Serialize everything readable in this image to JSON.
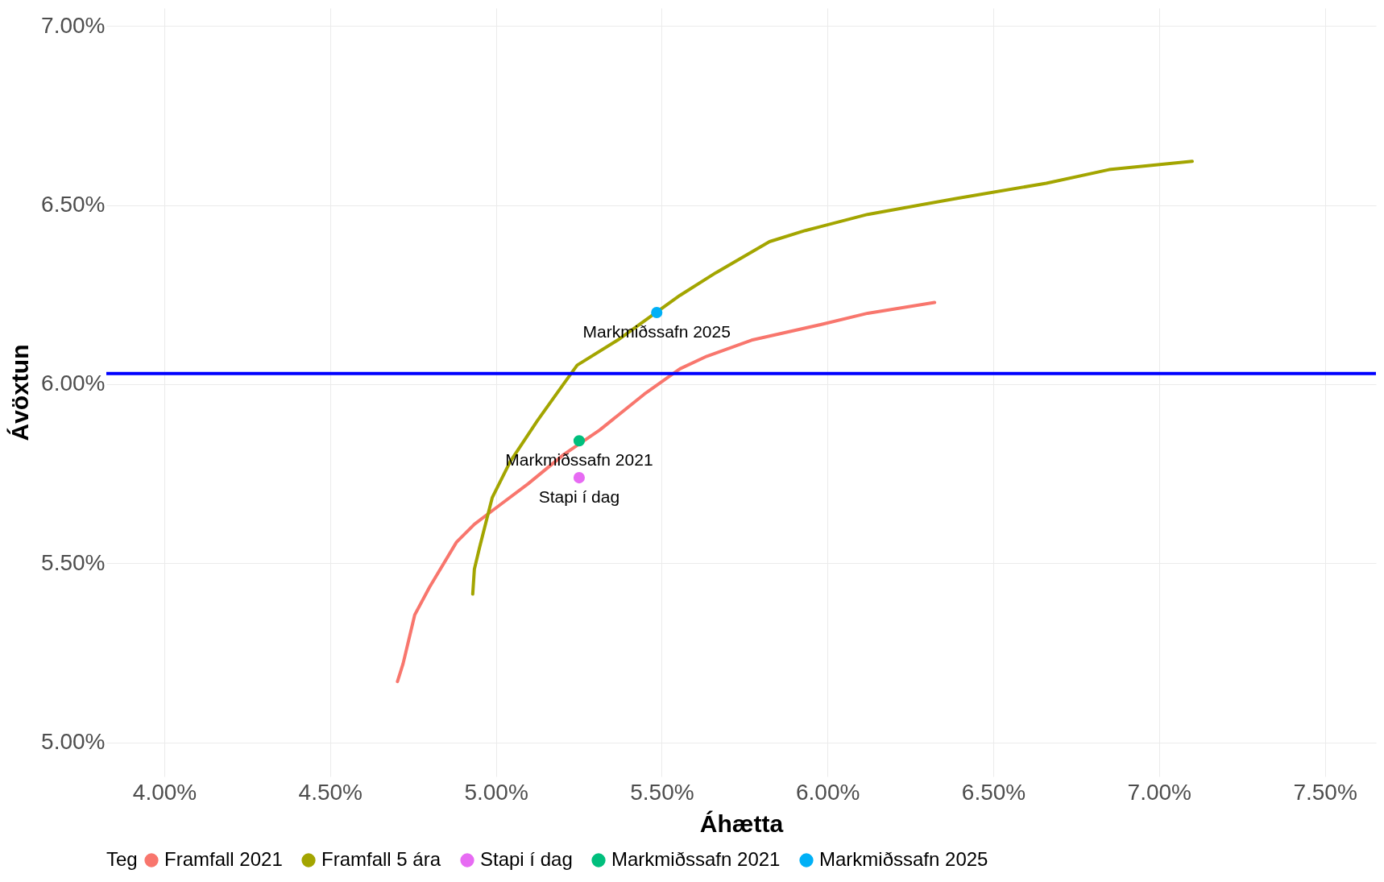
{
  "chart_data": {
    "type": "line",
    "xlabel": "Áhætta",
    "ylabel": "Ávöxtun",
    "legend_title": "Teg",
    "legend": "bottom",
    "grid": true,
    "xlim": [
      3.825,
      7.654
    ],
    "ylim": [
      4.905,
      7.05
    ],
    "xticks": [
      {
        "value": 4,
        "label": "4.00%"
      },
      {
        "value": 4.5,
        "label": "4.50%"
      },
      {
        "value": 5,
        "label": "5.00%"
      },
      {
        "value": 5.5,
        "label": "5.50%"
      },
      {
        "value": 6,
        "label": "6.00%"
      },
      {
        "value": 6.5,
        "label": "6.50%"
      },
      {
        "value": 7,
        "label": "7.00%"
      },
      {
        "value": 7.5,
        "label": "7.50%"
      }
    ],
    "yticks": [
      {
        "value": 5,
        "label": "5.00%"
      },
      {
        "value": 5.5,
        "label": "5.50%"
      },
      {
        "value": 6,
        "label": "6.00%"
      },
      {
        "value": 6.5,
        "label": "6.50%"
      },
      {
        "value": 7,
        "label": "7.00%"
      }
    ],
    "ref_lines": [
      {
        "axis": "y",
        "value": 6.03,
        "color": "#0000ff"
      }
    ],
    "series": [
      {
        "name": "Framfall 2021",
        "type": "line",
        "color": "#f8766d",
        "x": [
          4.703,
          4.72,
          4.755,
          4.8,
          4.881,
          4.935,
          4.989,
          5.097,
          5.205,
          5.313,
          5.447,
          5.555,
          5.636,
          5.771,
          5.987,
          6.121,
          6.323
        ],
        "values": [
          5.17,
          5.22,
          5.356,
          5.434,
          5.559,
          5.609,
          5.647,
          5.722,
          5.804,
          5.872,
          5.972,
          6.043,
          6.078,
          6.123,
          6.168,
          6.198,
          6.228
        ]
      },
      {
        "name": "Framfall 5 ára",
        "type": "line",
        "color": "#a3a500",
        "x": [
          4.93,
          4.935,
          4.951,
          4.989,
          5.043,
          5.124,
          5.205,
          5.245,
          5.367,
          5.555,
          5.663,
          5.825,
          5.933,
          6.121,
          6.391,
          6.66,
          6.849,
          7.1
        ],
        "values": [
          5.414,
          5.484,
          5.546,
          5.684,
          5.784,
          5.897,
          6.002,
          6.053,
          6.123,
          6.248,
          6.311,
          6.398,
          6.429,
          6.474,
          6.519,
          6.561,
          6.599,
          6.622
        ]
      },
      {
        "name": "Stapi í dag",
        "type": "scatter",
        "color": "#e76bf3",
        "x": [
          5.251
        ],
        "values": [
          5.739
        ]
      },
      {
        "name": "Markmiðssafn 2021",
        "type": "scatter",
        "color": "#00bf7d",
        "x": [
          5.251
        ],
        "values": [
          5.842
        ]
      },
      {
        "name": "Markmiðssafn 2025",
        "type": "scatter",
        "color": "#00b0f6",
        "x": [
          5.485
        ],
        "values": [
          6.2
        ]
      }
    ]
  }
}
